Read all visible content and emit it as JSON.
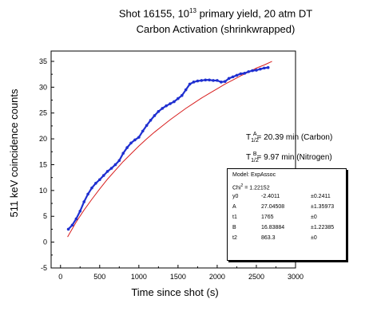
{
  "title_line1_pre": "Shot 16155, 10",
  "title_line1_sup": "13",
  "title_line1_post": " primary yield, 20 atm DT",
  "title_line2": "Carbon Activation (shrinkwrapped)",
  "halflife": {
    "carbon_T": "T",
    "carbon_sub": "1/2",
    "carbon_sup": "A",
    "carbon_text": "= 20.39 min (Carbon)",
    "nitrogen_T": "T",
    "nitrogen_sub": "1/2",
    "nitrogen_sup": "B",
    "nitrogen_text": "= 9.97 min (Nitrogen)"
  },
  "fit_box": {
    "model": "Model: ExpAssoc",
    "chi_label": "Chi",
    "chi_sup": "2",
    "chi_value": "= 1.22152",
    "params": [
      {
        "name": "y0",
        "value": "-2.4011",
        "error": "±0.2411"
      },
      {
        "name": "A",
        "value": "27.04508",
        "error": "±1.35973"
      },
      {
        "name": "t1",
        "value": "1765",
        "error": "±0"
      },
      {
        "name": "B",
        "value": "16.83884",
        "error": "±1.22385"
      },
      {
        "name": "t2",
        "value": "863.3",
        "error": "±0"
      }
    ]
  },
  "chart_data": {
    "type": "scatter",
    "title": "Shot 16155, 10^13 primary yield, 20 atm DT — Carbon Activation (shrinkwrapped)",
    "xlabel": "Time since shot (s)",
    "ylabel": "511 keV coincidence counts",
    "xlim": [
      -120,
      3000
    ],
    "ylim": [
      -5,
      37
    ],
    "x_ticks": [
      0,
      500,
      1000,
      1500,
      2000,
      2500,
      3000
    ],
    "x_tick_labels": [
      "0",
      "500",
      "1000",
      "1500",
      "2000",
      "2500",
      "3000"
    ],
    "y_ticks": [
      -5,
      0,
      5,
      10,
      15,
      20,
      25,
      30,
      35
    ],
    "y_tick_labels": [
      "-5",
      "0",
      "5",
      "10",
      "15",
      "20",
      "25",
      "30",
      "35"
    ],
    "grid": false,
    "series": [
      {
        "name": "data",
        "color": "#1f2fd0",
        "x": [
          100,
          150,
          200,
          250,
          300,
          350,
          400,
          450,
          500,
          550,
          600,
          650,
          700,
          750,
          800,
          850,
          900,
          950,
          1000,
          1050,
          1100,
          1150,
          1200,
          1250,
          1300,
          1350,
          1400,
          1450,
          1500,
          1550,
          1600,
          1650,
          1700,
          1750,
          1800,
          1850,
          1900,
          1950,
          2000,
          2050,
          2100,
          2150,
          2200,
          2250,
          2300,
          2350,
          2400,
          2450,
          2500,
          2550,
          2600,
          2650
        ],
        "y": [
          2.5,
          3.3,
          4.5,
          6.0,
          7.8,
          9.3,
          10.5,
          11.4,
          12.1,
          12.9,
          13.7,
          14.3,
          15.0,
          15.8,
          17.2,
          18.3,
          19.2,
          19.8,
          20.3,
          21.5,
          22.6,
          23.6,
          24.5,
          25.3,
          25.9,
          26.4,
          26.8,
          27.2,
          27.8,
          28.4,
          29.5,
          30.6,
          31.0,
          31.2,
          31.3,
          31.4,
          31.4,
          31.3,
          31.3,
          31.0,
          31.1,
          31.7,
          32.0,
          32.3,
          32.6,
          32.7,
          33.0,
          33.2,
          33.3,
          33.5,
          33.7,
          33.8
        ]
      },
      {
        "name": "fit",
        "color": "#d81e1e",
        "x": [
          90,
          200,
          300,
          400,
          500,
          600,
          700,
          800,
          900,
          1000,
          1100,
          1200,
          1300,
          1400,
          1500,
          1600,
          1700,
          1800,
          1900,
          2000,
          2100,
          2200,
          2300,
          2400,
          2500,
          2600,
          2700
        ],
        "y": [
          1.0,
          3.9,
          6.2,
          8.3,
          10.3,
          12.2,
          13.9,
          15.6,
          17.1,
          18.6,
          20.0,
          21.3,
          22.5,
          23.7,
          24.8,
          25.9,
          26.9,
          27.9,
          28.8,
          29.7,
          30.6,
          31.4,
          32.2,
          32.9,
          33.7,
          34.3,
          35.0
        ]
      }
    ]
  }
}
